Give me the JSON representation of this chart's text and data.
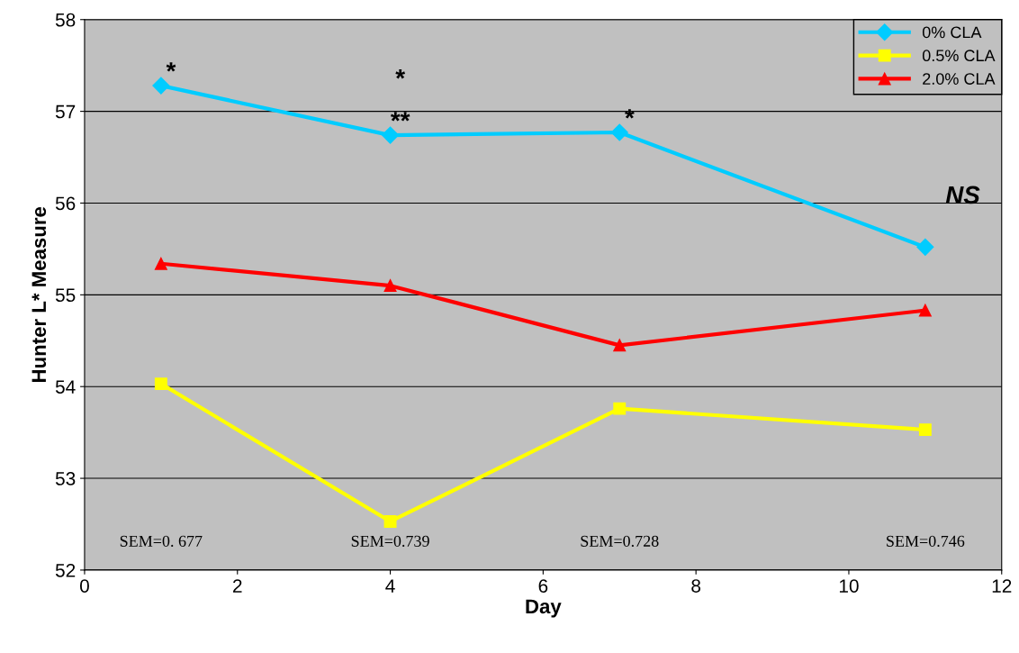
{
  "chart_data": {
    "type": "line",
    "xlabel": "Day",
    "ylabel": "Hunter L* Measure",
    "x": [
      1,
      4,
      7,
      11
    ],
    "series": [
      {
        "name": "0% CLA",
        "color": "#00ccff",
        "marker": "diamond",
        "values": [
          57.28,
          56.74,
          56.77,
          55.52
        ]
      },
      {
        "name": "0.5% CLA",
        "color": "#ffff00",
        "marker": "square",
        "values": [
          54.03,
          52.53,
          53.76,
          53.53
        ]
      },
      {
        "name": "2.0% CLA",
        "color": "#ff0000",
        "marker": "triangle",
        "values": [
          55.34,
          55.1,
          54.45,
          54.83
        ]
      }
    ],
    "xlim": [
      0,
      12
    ],
    "xticks": [
      0,
      2,
      4,
      6,
      8,
      10,
      12
    ],
    "ylim": [
      52,
      58
    ],
    "yticks": [
      52,
      53,
      54,
      55,
      56,
      57,
      58
    ],
    "grid": "y",
    "legend": "top right",
    "line_style": "solid",
    "annotations": [
      {
        "text": "*",
        "x": 1,
        "y": 57.28
      },
      {
        "text": "**",
        "x": 4,
        "y": 56.74
      },
      {
        "text": "*",
        "x": 4,
        "y": 56.74
      },
      {
        "text": "*",
        "x": 7,
        "y": 56.77
      },
      "SEM=0. 677",
      "SEM=0.739",
      "SEM=0.728",
      "SEM=0.746",
      "NS"
    ]
  }
}
